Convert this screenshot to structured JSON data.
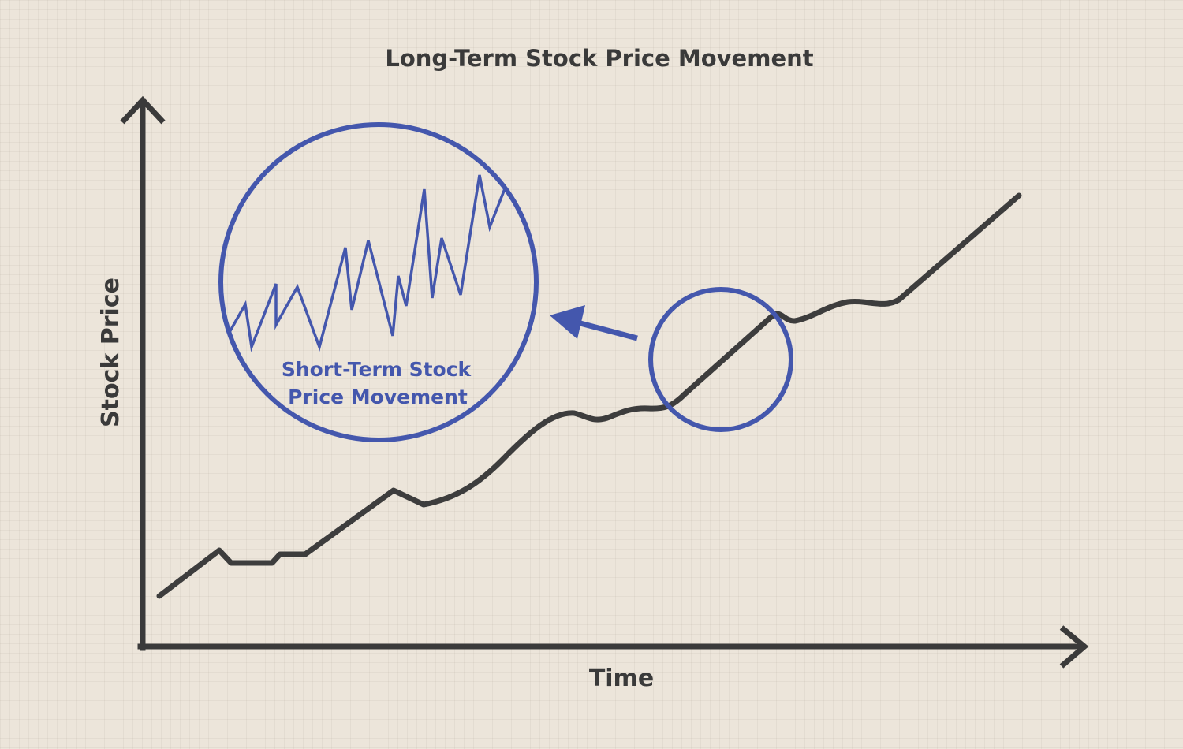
{
  "diagram": {
    "title": "Long-Term Stock Price Movement",
    "x_axis_label": "Time",
    "y_axis_label": "Stock Price",
    "callout_label_line1": "Short-Term Stock",
    "callout_label_line2": "Price Movement"
  },
  "colors": {
    "background": "#ece5da",
    "axis": "#3a3a3a",
    "long_term_line": "#3d3d3d",
    "accent": "#4457ad"
  }
}
